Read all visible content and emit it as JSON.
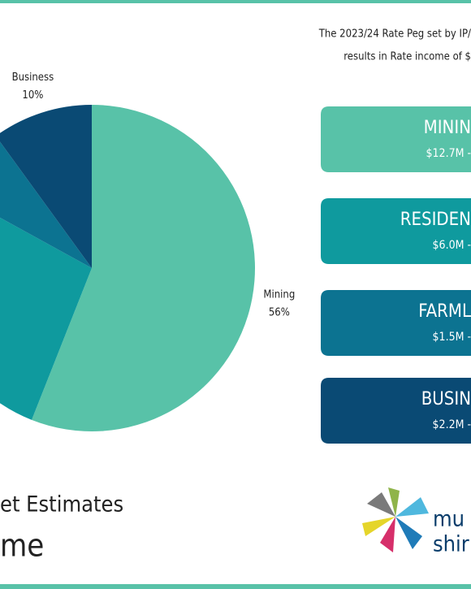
{
  "chart_data": {
    "type": "pie",
    "categories": [
      "Mining",
      null,
      null,
      "Business"
    ],
    "values": [
      56,
      27,
      7,
      10
    ],
    "value_labels": [
      "56%",
      null,
      null,
      "10%"
    ],
    "colors": [
      "#58c2a8",
      "#0f9a9e",
      "#0c7391",
      "#0a4a74"
    ]
  },
  "note": [
    "The 2023/24 Rate Peg set by IP/",
    "results in Rate income of $"
  ],
  "cards": [
    {
      "title": "MININ",
      "amount": "$12.7M -"
    },
    {
      "title": "RESIDEN",
      "amount": "$6.0M -"
    },
    {
      "title": "FARML",
      "amount": "$1.5M -"
    },
    {
      "title": "BUSIN",
      "amount": "$2.2M -"
    }
  ],
  "heading": [
    "et Estimates",
    "me"
  ],
  "logo": [
    "mu",
    "shir"
  ]
}
